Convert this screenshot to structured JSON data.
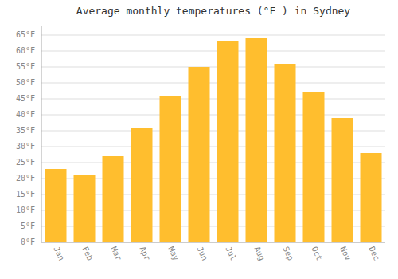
{
  "chart_data": {
    "type": "bar",
    "title": "Average monthly temperatures (°F ) in Sydney",
    "categories": [
      "Jan",
      "Feb",
      "Mar",
      "Apr",
      "May",
      "Jun",
      "Jul",
      "Aug",
      "Sep",
      "Oct",
      "Nov",
      "Dec"
    ],
    "values": [
      23,
      21,
      27,
      36,
      46,
      55,
      63,
      64,
      56,
      47,
      39,
      28
    ],
    "color": "#FFBE2E",
    "ylim": [
      0,
      68
    ],
    "yticks": [
      {
        "value": 0,
        "label": "0°F"
      },
      {
        "value": 5,
        "label": "5°F"
      },
      {
        "value": 10,
        "label": "10°F"
      },
      {
        "value": 15,
        "label": "15°F"
      },
      {
        "value": 20,
        "label": "20°F"
      },
      {
        "value": 25,
        "label": "25°F"
      },
      {
        "value": 30,
        "label": "30°F"
      },
      {
        "value": 35,
        "label": "35°F"
      },
      {
        "value": 40,
        "label": "40°F"
      },
      {
        "value": 45,
        "label": "45°F"
      },
      {
        "value": 50,
        "label": "50°F"
      },
      {
        "value": 55,
        "label": "55°F"
      },
      {
        "value": 60,
        "label": "60°F"
      },
      {
        "value": 65,
        "label": "65°F"
      }
    ],
    "grid": true
  }
}
